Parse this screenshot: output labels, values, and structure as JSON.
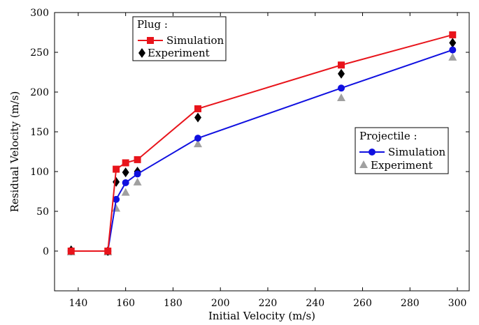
{
  "chart_data": {
    "type": "line",
    "xlabel": "Initial Velocity (m/s)",
    "ylabel": "Residual Velocity (m/s)",
    "xlim": [
      130,
      305
    ],
    "ylim": [
      -50,
      300
    ],
    "xticks": [
      140,
      160,
      180,
      200,
      220,
      240,
      260,
      280,
      300
    ],
    "yticks": [
      0,
      50,
      100,
      150,
      200,
      250,
      300
    ],
    "grid": false,
    "legends": [
      {
        "title": "Plug :",
        "placement": "top-left",
        "entries": [
          {
            "label": "Simulation",
            "series": 0
          },
          {
            "label": "Experiment",
            "series": 1
          }
        ]
      },
      {
        "title": "Projectile :",
        "placement": "middle-right",
        "entries": [
          {
            "label": "Simulation",
            "series": 2
          },
          {
            "label": "Experiment",
            "series": 3
          }
        ]
      }
    ],
    "series": [
      {
        "kind": "line-marker",
        "marker": "square",
        "color": "#e8141b",
        "points": [
          [
            137,
            0
          ],
          [
            152.5,
            0
          ],
          [
            156,
            103
          ],
          [
            160,
            111
          ],
          [
            165,
            115
          ],
          [
            190.5,
            179
          ],
          [
            251,
            234
          ],
          [
            298,
            272
          ]
        ]
      },
      {
        "kind": "marker",
        "marker": "diamond",
        "color": "#000000",
        "points": [
          [
            137,
            1
          ],
          [
            152.5,
            0
          ],
          [
            156,
            87
          ],
          [
            160,
            99
          ],
          [
            165,
            100
          ],
          [
            190.5,
            168
          ],
          [
            251,
            223
          ],
          [
            298,
            262
          ]
        ]
      },
      {
        "kind": "line-marker",
        "marker": "circle",
        "color": "#1010e0",
        "points": [
          [
            137,
            0
          ],
          [
            152.5,
            0
          ],
          [
            156,
            65
          ],
          [
            160,
            86
          ],
          [
            165,
            97
          ],
          [
            190.5,
            142
          ],
          [
            251,
            205
          ],
          [
            298,
            253
          ]
        ]
      },
      {
        "kind": "marker",
        "marker": "triangle",
        "color": "#a0a0a0",
        "points": [
          [
            137,
            -1
          ],
          [
            152.5,
            -1
          ],
          [
            156,
            54
          ],
          [
            160,
            74
          ],
          [
            165,
            87
          ],
          [
            190.5,
            135
          ],
          [
            251,
            193
          ],
          [
            298,
            244
          ]
        ]
      }
    ]
  }
}
